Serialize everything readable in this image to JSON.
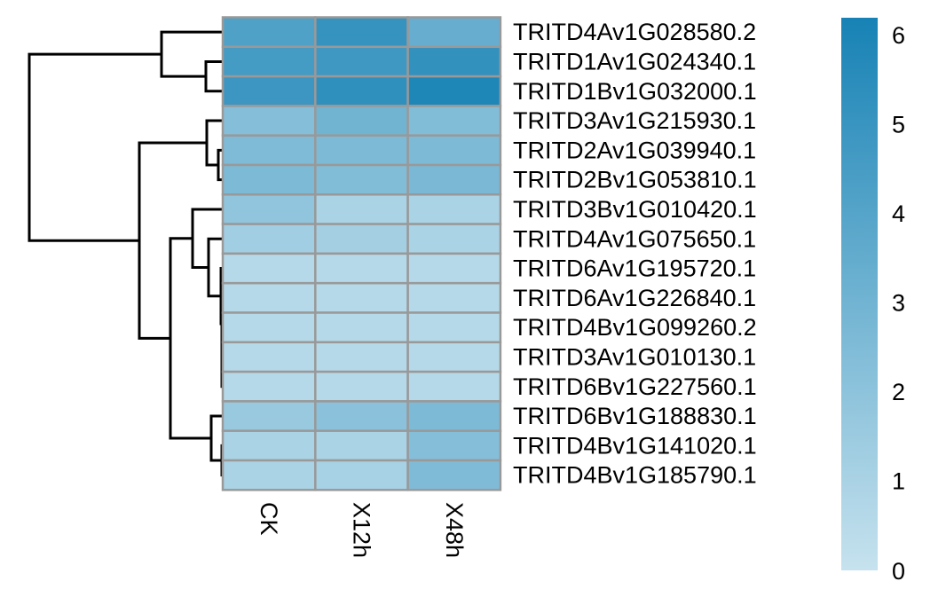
{
  "chart_data": {
    "type": "heatmap",
    "columns": [
      "CK",
      "X12h",
      "X48h"
    ],
    "rows": [
      "TRITD4Av1G028580.2",
      "TRITD1Av1G024340.1",
      "TRITD1Bv1G032000.1",
      "TRITD3Av1G215930.1",
      "TRITD2Av1G039940.1",
      "TRITD2Bv1G053810.1",
      "TRITD3Bv1G010420.1",
      "TRITD4Av1G075650.1",
      "TRITD6Av1G195720.1",
      "TRITD6Av1G226840.1",
      "TRITD4Bv1G099260.2",
      "TRITD3Av1G010130.1",
      "TRITD6Bv1G227560.1",
      "TRITD6Bv1G188830.1",
      "TRITD4Bv1G141020.1",
      "TRITD4Bv1G185790.1"
    ],
    "values": [
      [
        4.2,
        5.1,
        3.4
      ],
      [
        4.6,
        4.8,
        5.2
      ],
      [
        4.9,
        5.3,
        5.9
      ],
      [
        2.3,
        3.0,
        2.4
      ],
      [
        2.5,
        2.6,
        2.6
      ],
      [
        2.6,
        2.4,
        2.7
      ],
      [
        1.9,
        1.0,
        1.0
      ],
      [
        1.3,
        1.2,
        1.0
      ],
      [
        0.6,
        0.6,
        0.6
      ],
      [
        0.6,
        0.6,
        0.6
      ],
      [
        0.6,
        0.6,
        0.6
      ],
      [
        0.6,
        0.6,
        0.6
      ],
      [
        0.6,
        0.6,
        0.6
      ],
      [
        1.6,
        2.1,
        2.6
      ],
      [
        1.0,
        1.0,
        2.3
      ],
      [
        1.0,
        1.1,
        2.5
      ]
    ],
    "color_scale": {
      "min": 0,
      "max": 6.2,
      "low_color": "#c6e2ee",
      "high_color": "#1782b5",
      "ticks": [
        "0",
        "1",
        "2",
        "3",
        "4",
        "5",
        "6"
      ]
    },
    "cell_border_color": "#999999",
    "dendrogram_color": "#000000"
  }
}
